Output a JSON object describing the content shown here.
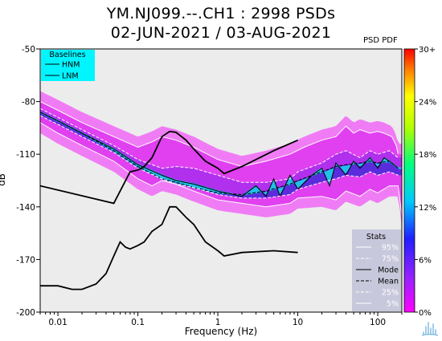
{
  "title_line1": "YM.NJ099.--.CH1 : 2998 PSDs",
  "title_line2": "02-JUN-2021 / 03-AUG-2021",
  "legend_label": "PSD PDF",
  "colors": {
    "background": "#ececec",
    "hnm_lnm": "#000000",
    "baseline_box": "#00f5ff",
    "stats_box": "#c8c8dc",
    "percentile_lines": "#ffffff"
  },
  "icons": [
    "waveform-logo-icon"
  ],
  "chart_data": {
    "type": "heatmap",
    "title": "YM.NJ099.--.CH1 : 2998 PSDs 02-JUN-2021 / 03-AUG-2021",
    "xlabel": "Frequency (Hz)",
    "ylabel": "dB",
    "x_scale": "log",
    "xlim": [
      0.006,
      200
    ],
    "ylim": [
      -200,
      -50
    ],
    "x_ticks": [
      0.01,
      0.1,
      1,
      10,
      100
    ],
    "x_tick_labels": [
      "0.01",
      "0.1",
      "1",
      "10",
      "100"
    ],
    "y_ticks": [
      -50,
      -80,
      -110,
      -140,
      -170,
      -200
    ],
    "y_tick_labels": [
      "-50",
      "-80",
      "-110",
      "-140",
      "-170",
      "-200"
    ],
    "colorbar": {
      "label": "PSD PDF",
      "ticks": [
        "30+",
        "24%",
        "18%",
        "12%",
        "6%",
        "0%"
      ],
      "range": [
        0,
        30
      ]
    },
    "baselines_legend": {
      "title": "Baselines",
      "entries": [
        "HNM",
        "LNM"
      ]
    },
    "stats_legend": {
      "title": "Stats",
      "entries": [
        "95%",
        "75%",
        "Mode",
        "Mean",
        "25%",
        "5%"
      ]
    },
    "grid": false,
    "HNM": {
      "x": [
        0.006,
        0.05,
        0.08,
        0.1,
        0.12,
        0.15,
        0.2,
        0.25,
        0.3,
        0.4,
        0.5,
        0.7,
        1,
        1.2,
        2,
        5,
        10
      ],
      "y": [
        -128,
        -138,
        -120,
        -119,
        -117,
        -112,
        -100,
        -97,
        -97.5,
        -102,
        -107,
        -114,
        -118,
        -121,
        -117,
        -108,
        -102
      ]
    },
    "LNM": {
      "x": [
        0.006,
        0.01,
        0.015,
        0.02,
        0.03,
        0.04,
        0.05,
        0.06,
        0.07,
        0.08,
        0.1,
        0.12,
        0.15,
        0.2,
        0.25,
        0.3,
        0.4,
        0.5,
        0.7,
        1,
        1.2,
        2,
        5,
        10
      ],
      "y": [
        -185,
        -185,
        -187,
        -187,
        -184,
        -178,
        -168,
        -160,
        -163,
        -164,
        -162,
        -160,
        -154,
        -150,
        -140,
        -140,
        -146,
        -150,
        -160,
        -165,
        -168,
        -166,
        -165,
        -166
      ]
    },
    "series": [
      {
        "name": "95%",
        "x": [
          0.006,
          0.01,
          0.02,
          0.05,
          0.1,
          0.15,
          0.2,
          0.3,
          0.5,
          1,
          2,
          4,
          8,
          12,
          20,
          30,
          40,
          50,
          60,
          80,
          100,
          120,
          150,
          170,
          180
        ],
        "y": [
          -80,
          -85,
          -92,
          -100,
          -106,
          -103,
          -100,
          -102,
          -106,
          -113,
          -117,
          -114,
          -110,
          -106,
          -102,
          -100,
          -94,
          -98,
          -96,
          -98,
          -97,
          -98,
          -100,
          -105,
          -110
        ]
      },
      {
        "name": "75%",
        "x": [
          0.006,
          0.01,
          0.02,
          0.05,
          0.1,
          0.2,
          0.3,
          0.5,
          1,
          2,
          4,
          8,
          10,
          20,
          30,
          40,
          60,
          80,
          100,
          140,
          180
        ],
        "y": [
          -84,
          -89,
          -96,
          -105,
          -113,
          -118,
          -117,
          -118,
          -122,
          -126,
          -126,
          -124,
          -120,
          -115,
          -110,
          -108,
          -112,
          -108,
          -110,
          -108,
          -112
        ]
      },
      {
        "name": "Mode",
        "x": [
          0.006,
          0.01,
          0.02,
          0.05,
          0.1,
          0.2,
          0.3,
          0.5,
          1,
          2,
          3,
          4,
          5,
          6,
          8,
          10,
          15,
          20,
          25,
          30,
          40,
          50,
          60,
          80,
          100,
          120,
          150,
          180
        ],
        "y": [
          -86,
          -91,
          -98,
          -107,
          -116,
          -122,
          -125,
          -127,
          -131,
          -134,
          -128,
          -134,
          -124,
          -134,
          -122,
          -130,
          -122,
          -118,
          -128,
          -115,
          -122,
          -114,
          -118,
          -112,
          -118,
          -112,
          -115,
          -118
        ]
      },
      {
        "name": "Mean",
        "x": [
          0.006,
          0.01,
          0.02,
          0.05,
          0.1,
          0.2,
          0.3,
          0.5,
          1,
          2,
          4,
          8,
          10,
          20,
          30,
          40,
          60,
          80,
          100,
          140,
          180
        ],
        "y": [
          -86,
          -91,
          -98,
          -108,
          -117,
          -124,
          -126,
          -129,
          -132,
          -133,
          -131,
          -127,
          -125,
          -120,
          -117,
          -116,
          -115,
          -114,
          -115,
          -114,
          -118
        ]
      },
      {
        "name": "25%",
        "x": [
          0.006,
          0.01,
          0.02,
          0.05,
          0.1,
          0.2,
          0.3,
          0.5,
          1,
          2,
          4,
          8,
          10,
          20,
          30,
          40,
          60,
          80,
          100,
          140,
          180
        ],
        "y": [
          -88,
          -93,
          -100,
          -109,
          -118,
          -124,
          -127,
          -129,
          -133,
          -135,
          -135,
          -133,
          -130,
          -126,
          -124,
          -122,
          -123,
          -120,
          -122,
          -120,
          -122
        ]
      },
      {
        "name": "5%",
        "x": [
          0.006,
          0.01,
          0.02,
          0.05,
          0.1,
          0.15,
          0.2,
          0.3,
          0.5,
          1,
          2,
          4,
          8,
          10,
          20,
          30,
          40,
          60,
          80,
          100,
          140,
          180,
          200
        ],
        "y": [
          -92,
          -98,
          -105,
          -114,
          -124,
          -128,
          -125,
          -127,
          -131,
          -136,
          -138,
          -140,
          -138,
          -135,
          -134,
          -136,
          -131,
          -134,
          -130,
          -132,
          -128,
          -128,
          -145
        ]
      }
    ]
  }
}
